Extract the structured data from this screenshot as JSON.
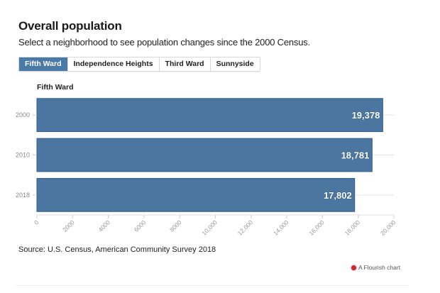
{
  "header": {
    "title": "Overall population",
    "subtitle": "Select a neighborhood to see population changes since the 2000 Census."
  },
  "controls": {
    "options": [
      {
        "label": "Fifth Ward",
        "active": true
      },
      {
        "label": "Independence Heights",
        "active": false
      },
      {
        "label": "Third Ward",
        "active": false
      },
      {
        "label": "Sunnyside",
        "active": false
      }
    ]
  },
  "chart_data": {
    "type": "bar",
    "orientation": "horizontal",
    "title": "Fifth Ward",
    "categories": [
      "2000",
      "2010",
      "2018"
    ],
    "values": [
      19378,
      18781,
      17802
    ],
    "value_labels": [
      "19,378",
      "18,781",
      "17,802"
    ],
    "xlabel": "",
    "ylabel": "",
    "xlim": [
      0,
      20000
    ],
    "x_ticks": [
      0,
      2000,
      4000,
      6000,
      8000,
      10000,
      12000,
      14000,
      16000,
      18000,
      20000
    ],
    "x_tick_labels": [
      "0",
      "2000",
      "4000",
      "6000",
      "8000",
      "10,000",
      "12,000",
      "14,000",
      "16,000",
      "18,000",
      "20,000"
    ],
    "grid": true,
    "bar_color": "#4a76a0"
  },
  "footer": {
    "source": "Source: U.S. Census, American Community Survey 2018",
    "credit": "A Flourish chart"
  }
}
